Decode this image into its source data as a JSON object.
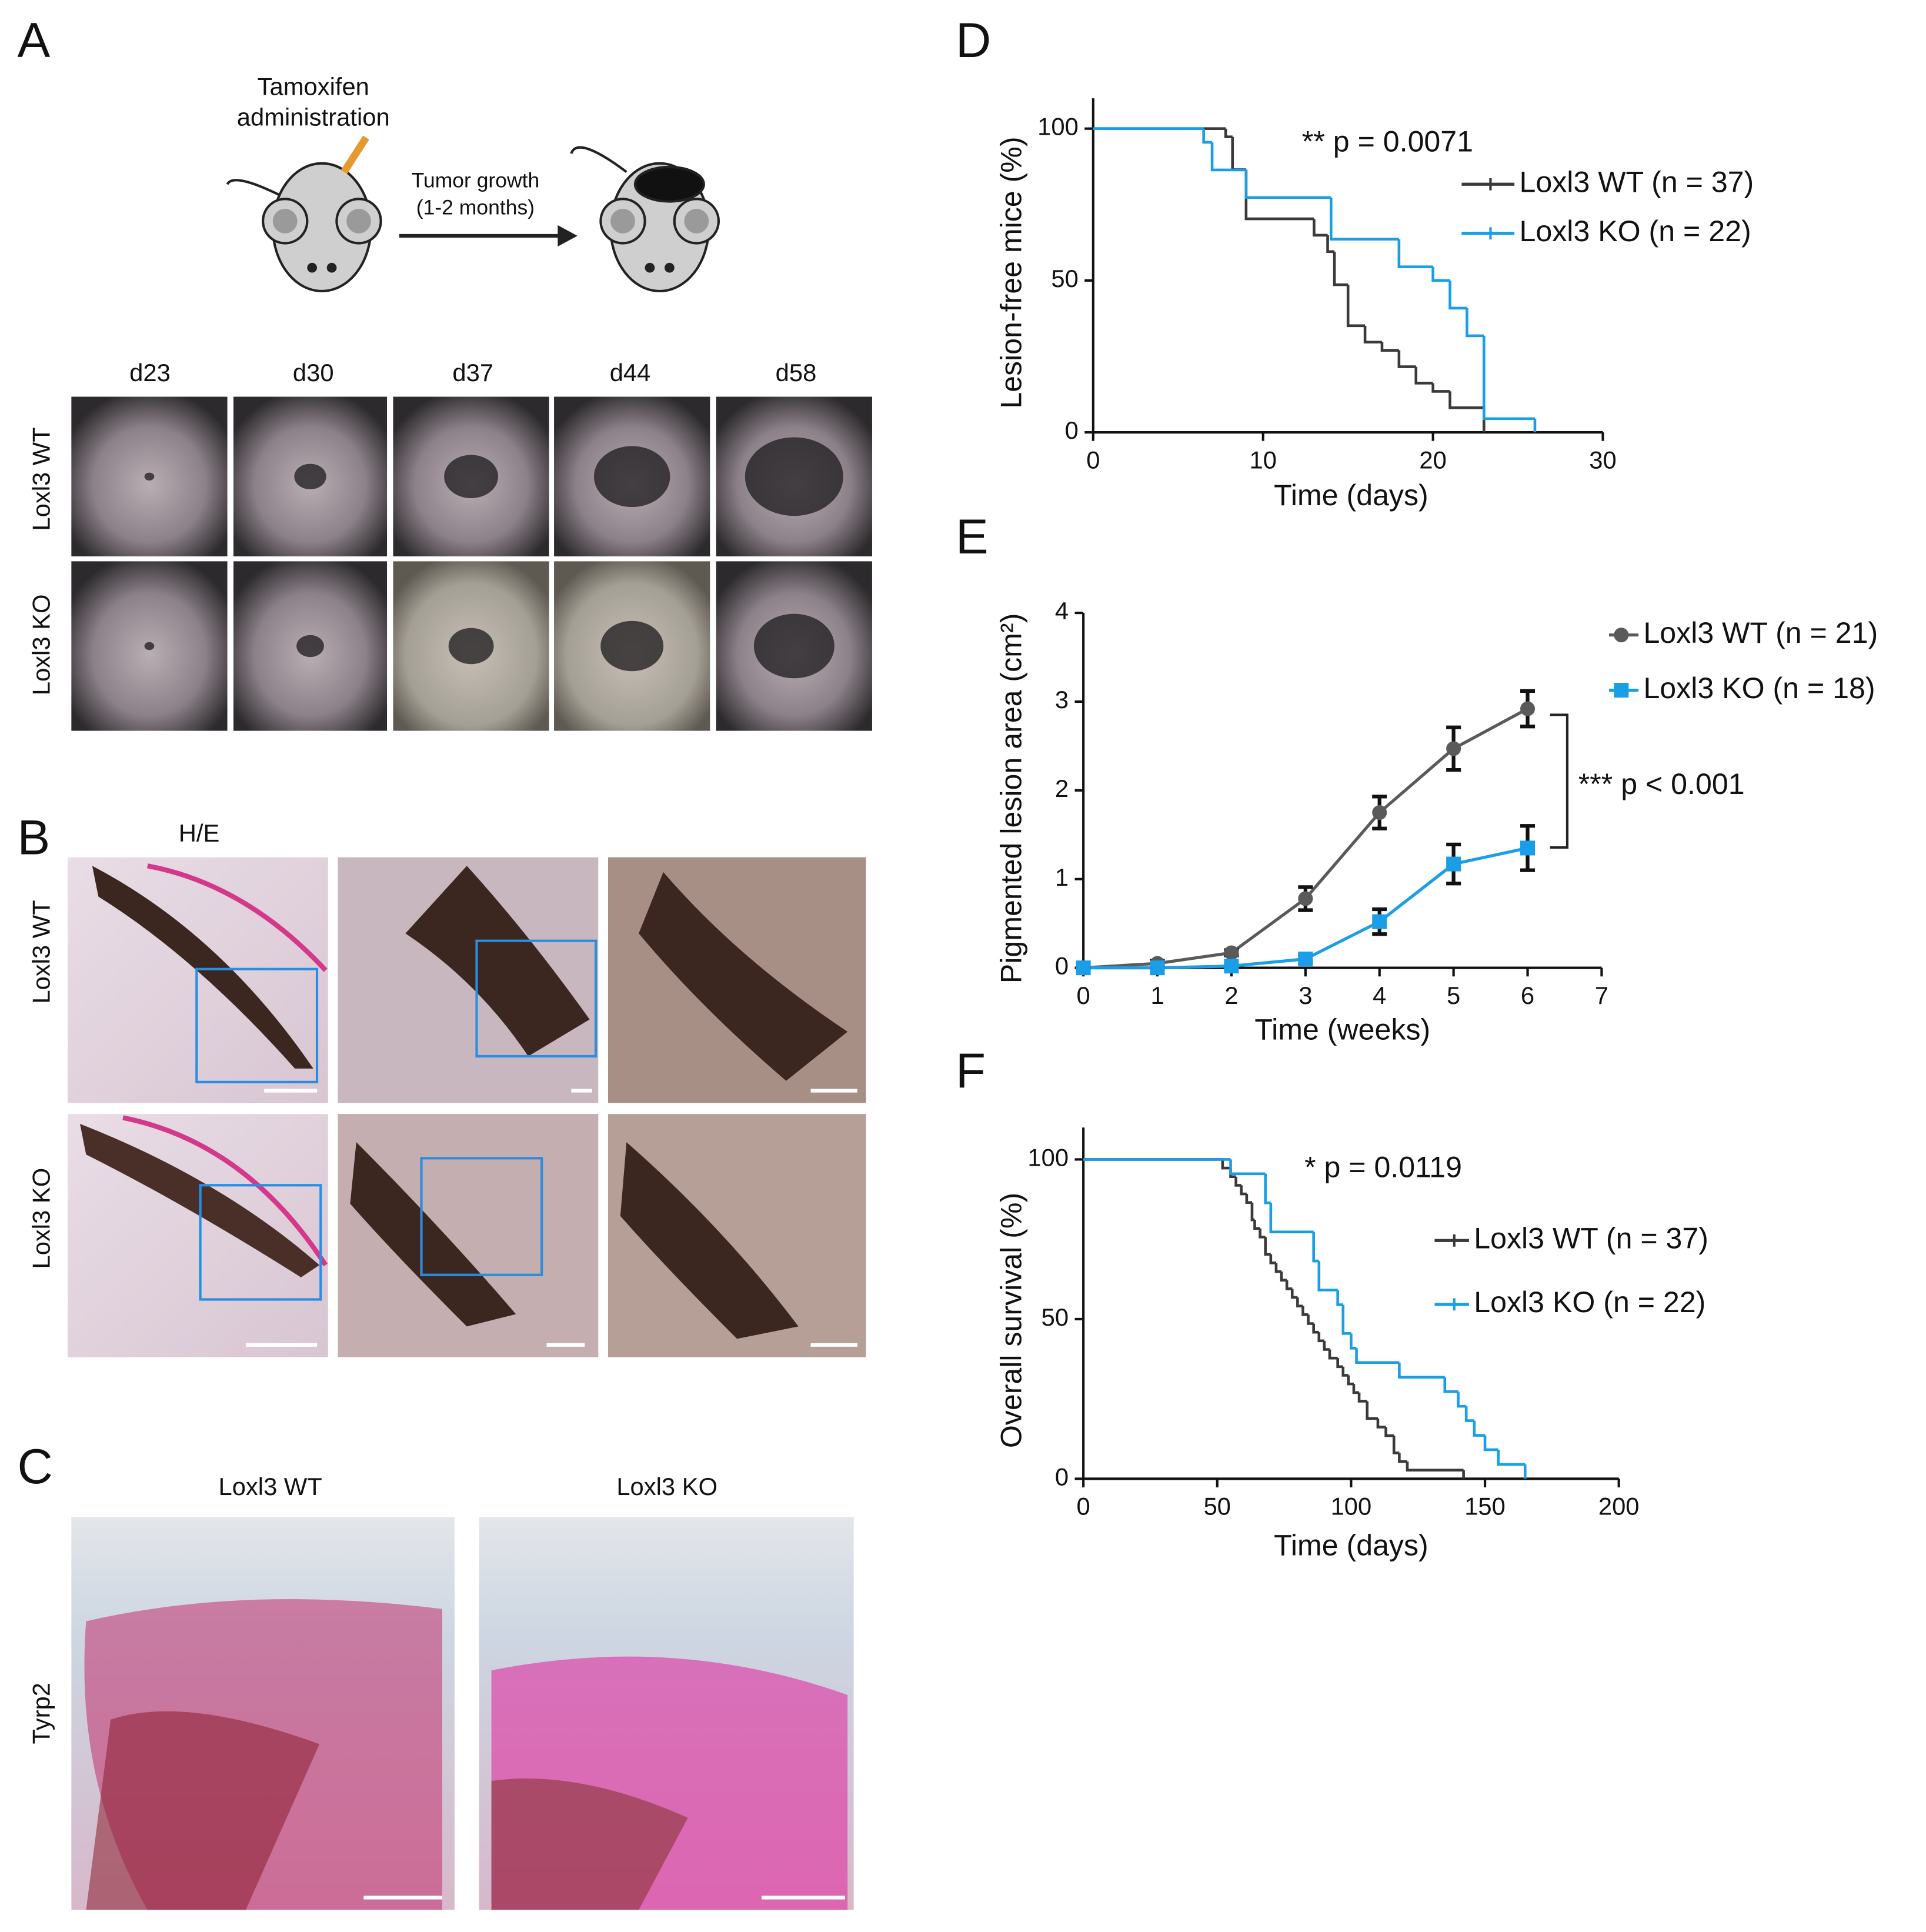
{
  "panel_labels": [
    "A",
    "B",
    "C",
    "D",
    "E",
    "F"
  ],
  "panel_a": {
    "treatment": [
      "Tamoxifen",
      "administration"
    ],
    "growth": [
      "Tumor growth",
      "(1-2 months)"
    ],
    "days": [
      "d23",
      "d30",
      "d37",
      "d44",
      "d58"
    ],
    "rows": [
      "Loxl3 WT",
      "Loxl3 KO"
    ]
  },
  "panel_b": {
    "stain": "H/E",
    "rows": [
      "Loxl3 WT",
      "Loxl3 KO"
    ]
  },
  "panel_c": {
    "columns": [
      "Loxl3 WT",
      "Loxl3 KO"
    ],
    "row": "Tyrp2"
  },
  "chart_data": [
    {
      "type": "step",
      "y_label": "Lesion-free mice (%)",
      "x_label": "Time (days)",
      "annotation": "** p = 0.0071",
      "xlim": [
        0,
        30
      ],
      "xticks": [
        0,
        10,
        20,
        30
      ],
      "ylim": [
        0,
        110
      ],
      "yticks": [
        0,
        50,
        100
      ],
      "series": [
        {
          "name": "Loxl3 WT (n = 37)",
          "color": "#3a3a3a",
          "x": [
            0,
            7.8,
            8.2,
            9,
            13,
            13.8,
            14.2,
            15,
            16,
            17,
            18,
            19,
            20,
            21,
            23
          ],
          "values": [
            100,
            97.3,
            86.5,
            70.3,
            64.9,
            59.5,
            48.6,
            35.1,
            29.7,
            27.0,
            21.6,
            16.2,
            13.5,
            8.1,
            0
          ]
        },
        {
          "name": "Loxl3 KO (n = 22)",
          "color": "#1a9ee8",
          "x": [
            0,
            6.5,
            7,
            9,
            14,
            18,
            20,
            21,
            22,
            23,
            26
          ],
          "values": [
            100,
            95.5,
            86.4,
            77.3,
            63.6,
            54.5,
            50,
            40.9,
            31.8,
            4.5,
            0
          ]
        }
      ]
    },
    {
      "type": "line",
      "y_label": "Pigmented lesion area (cm²)",
      "x_label": "Time (weeks)",
      "annotation": "*** p < 0.001",
      "xlim": [
        0,
        7
      ],
      "xticks": [
        0,
        1,
        2,
        3,
        4,
        5,
        6,
        7
      ],
      "ylim": [
        0,
        4
      ],
      "yticks": [
        0,
        1,
        2,
        3,
        4
      ],
      "x": [
        0,
        1,
        2,
        3,
        4,
        5,
        6
      ],
      "series": [
        {
          "name": "Loxl3 WT (n = 21)",
          "color": "#5a5a5a",
          "marker": "circle",
          "values": [
            0,
            0.05,
            0.17,
            0.78,
            1.75,
            2.47,
            2.92
          ],
          "errors": [
            0,
            0.03,
            0.03,
            0.13,
            0.18,
            0.24,
            0.2
          ]
        },
        {
          "name": "Loxl3 KO (n = 18)",
          "color": "#1a9ee8",
          "marker": "square",
          "values": [
            0,
            0,
            0.02,
            0.1,
            0.52,
            1.17,
            1.35
          ],
          "errors": [
            0,
            0,
            0.02,
            0.05,
            0.14,
            0.22,
            0.25
          ]
        }
      ]
    },
    {
      "type": "step",
      "y_label": "Overall survival (%)",
      "x_label": "Time (days)",
      "annotation": "* p = 0.0119",
      "xlim": [
        0,
        200
      ],
      "xticks": [
        0,
        50,
        100,
        150,
        200
      ],
      "ylim": [
        0,
        110
      ],
      "yticks": [
        0,
        50,
        100
      ],
      "series": [
        {
          "name": "Loxl3 WT (n = 37)",
          "color": "#3a3a3a",
          "x": [
            0,
            52,
            55,
            57,
            59,
            61,
            63,
            64,
            66,
            68,
            70,
            72,
            74,
            76,
            78,
            80,
            82,
            84,
            86,
            88,
            90,
            92,
            95,
            97,
            99,
            101,
            103,
            106,
            110,
            113,
            116,
            118,
            121,
            123,
            142
          ],
          "values": [
            100,
            97.3,
            94.6,
            91.9,
            89.2,
            86.5,
            81.1,
            78.4,
            75.7,
            70.3,
            67.6,
            64.9,
            62.2,
            59.5,
            56.8,
            54.1,
            51.4,
            48.6,
            45.9,
            43.2,
            40.5,
            37.8,
            35.1,
            32.4,
            29.7,
            27.0,
            24.3,
            18.9,
            16.2,
            13.5,
            8.1,
            5.4,
            2.7,
            2.7,
            0
          ]
        },
        {
          "name": "Loxl3 KO (n = 22)",
          "color": "#1a9ee8",
          "x": [
            0,
            55,
            68,
            70,
            86,
            88,
            95,
            97,
            100,
            102,
            118,
            135,
            140,
            143,
            146,
            150,
            155,
            165
          ],
          "values": [
            100,
            95.5,
            86.4,
            77.3,
            68.2,
            59.1,
            54.5,
            45.5,
            40.9,
            36.4,
            31.8,
            27.3,
            22.7,
            18.2,
            13.6,
            9.1,
            4.5,
            0
          ]
        }
      ]
    }
  ]
}
